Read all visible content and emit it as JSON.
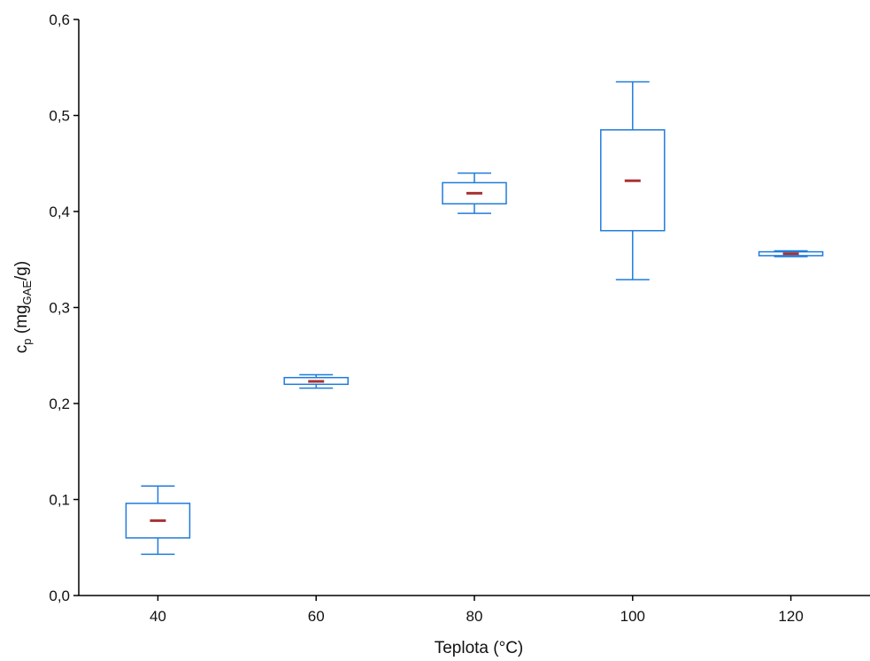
{
  "chart_data": {
    "type": "box",
    "title": "",
    "xlabel": "Teplota (°C)",
    "ylabel": {
      "base": "c",
      "base_sub": "p",
      "prefix": " (mg",
      "sub": "GAE",
      "suffix": "/g)"
    },
    "ylim": [
      0,
      0.6
    ],
    "yticks": [
      0,
      0.1,
      0.2,
      0.3,
      0.4,
      0.5,
      0.6
    ],
    "ytick_labels": [
      "0,0",
      "0,1",
      "0,2",
      "0,3",
      "0,4",
      "0,5",
      "0,6"
    ],
    "xlim": [
      30,
      130
    ],
    "categories": [
      "40",
      "60",
      "80",
      "100",
      "120"
    ],
    "x": [
      40,
      60,
      80,
      100,
      120
    ],
    "boxes": [
      {
        "x": 40,
        "whisker_low": 0.043,
        "q1": 0.06,
        "median": 0.078,
        "q3": 0.096,
        "whisker_high": 0.114
      },
      {
        "x": 60,
        "whisker_low": 0.216,
        "q1": 0.22,
        "median": 0.223,
        "q3": 0.227,
        "whisker_high": 0.23
      },
      {
        "x": 80,
        "whisker_low": 0.398,
        "q1": 0.408,
        "median": 0.419,
        "q3": 0.43,
        "whisker_high": 0.44
      },
      {
        "x": 100,
        "whisker_low": 0.329,
        "q1": 0.38,
        "median": 0.432,
        "q3": 0.485,
        "whisker_high": 0.535
      },
      {
        "x": 120,
        "whisker_low": 0.353,
        "q1": 0.354,
        "median": 0.356,
        "q3": 0.358,
        "whisker_high": 0.359
      }
    ],
    "grid": false,
    "legend": "none",
    "colors": {
      "box": "#1f7bdc",
      "median": "#a83232",
      "axis": "#000000"
    }
  }
}
